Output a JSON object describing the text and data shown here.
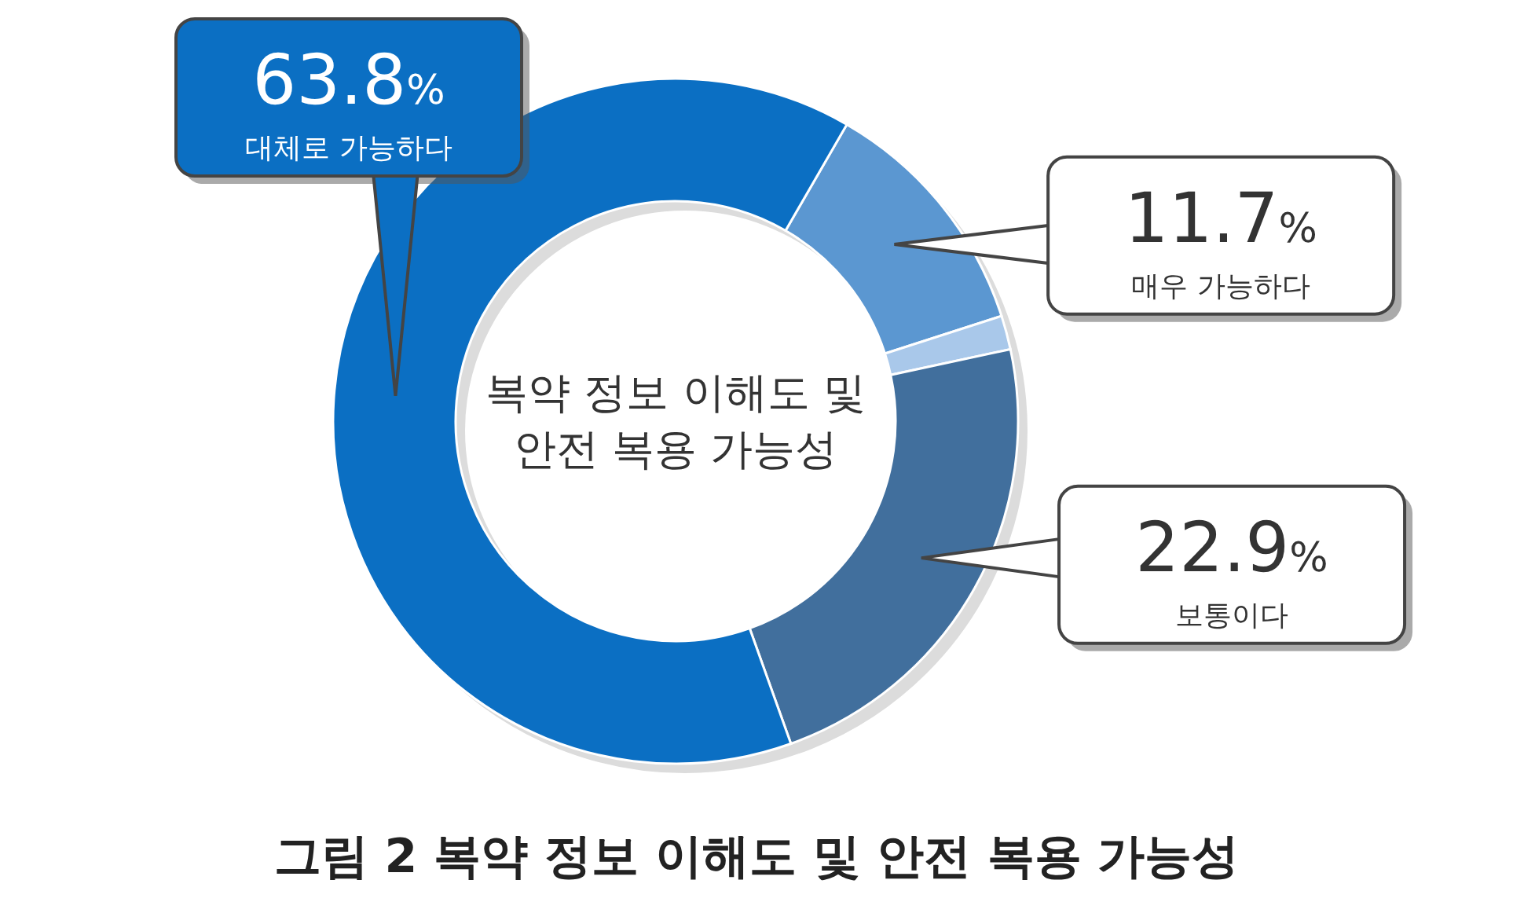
{
  "chart_data": {
    "type": "donut",
    "title": "그림 2 복약 정보 이해도 및 안전 복용 가능성",
    "categories": [
      "매우 가능하다",
      null,
      "보통이다",
      "대체로 가능하다"
    ],
    "values": [
      11.7,
      1.6,
      22.9,
      63.8
    ],
    "colors": [
      "#5b97d1",
      "#a9c8ea",
      "#416f9d",
      "#0b6fc3"
    ],
    "value_labels": [
      "11.7%",
      null,
      "22.9%",
      "63.8%"
    ],
    "annotations": [
      "복약 정보 이해도 및\n안전 복용 가능성"
    ]
  }
}
